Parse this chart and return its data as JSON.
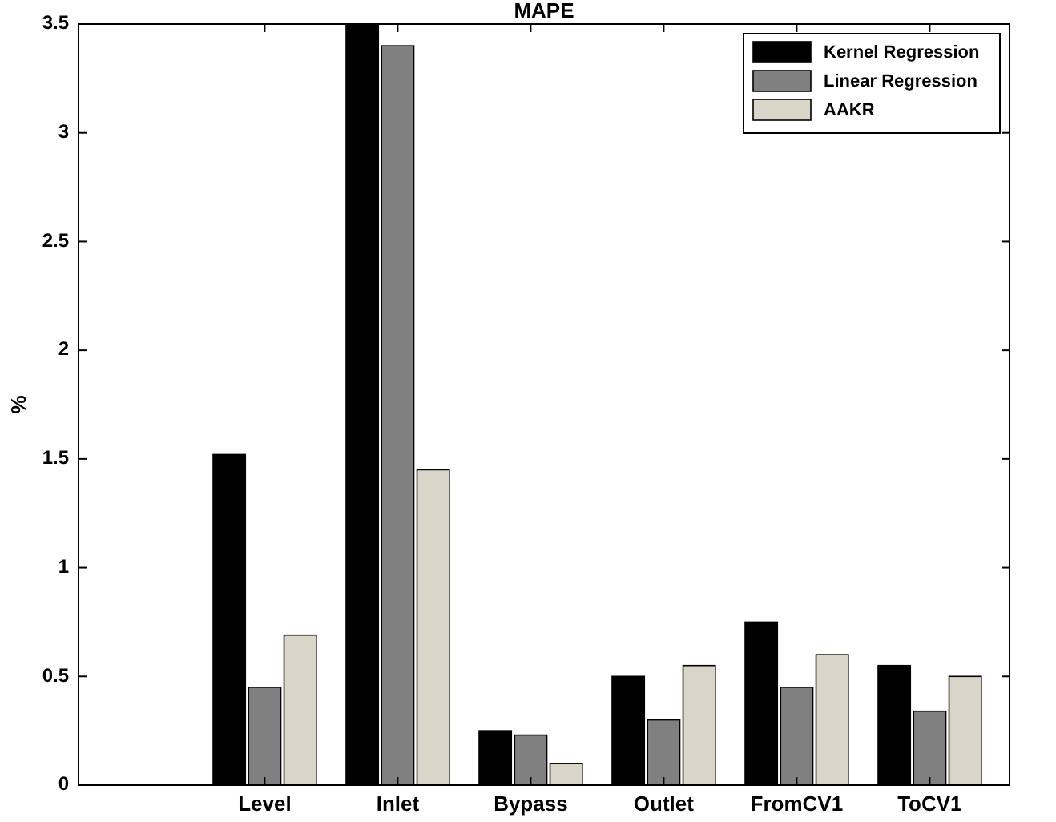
{
  "chart_data": {
    "type": "bar",
    "title": "MAPE",
    "ylabel": "%",
    "categories": [
      "Level",
      "Inlet",
      "Bypass",
      "Outlet",
      "FromCV1",
      "ToCV1"
    ],
    "series": [
      {
        "name": "Kernel Regression",
        "color": "#000000",
        "values": [
          1.52,
          3.5,
          0.25,
          0.5,
          0.75,
          0.55
        ]
      },
      {
        "name": "Linear Regression",
        "color": "#808080",
        "values": [
          0.45,
          3.4,
          0.23,
          0.3,
          0.45,
          0.34
        ]
      },
      {
        "name": "AAKR",
        "color": "#d9d5c9",
        "values": [
          0.69,
          1.45,
          0.1,
          0.55,
          0.6,
          0.5
        ]
      }
    ],
    "ylim": [
      0,
      3.5
    ],
    "yticks": [
      0,
      0.5,
      1,
      1.5,
      2,
      2.5,
      3,
      3.5
    ],
    "grid": false,
    "legend": "top right"
  }
}
